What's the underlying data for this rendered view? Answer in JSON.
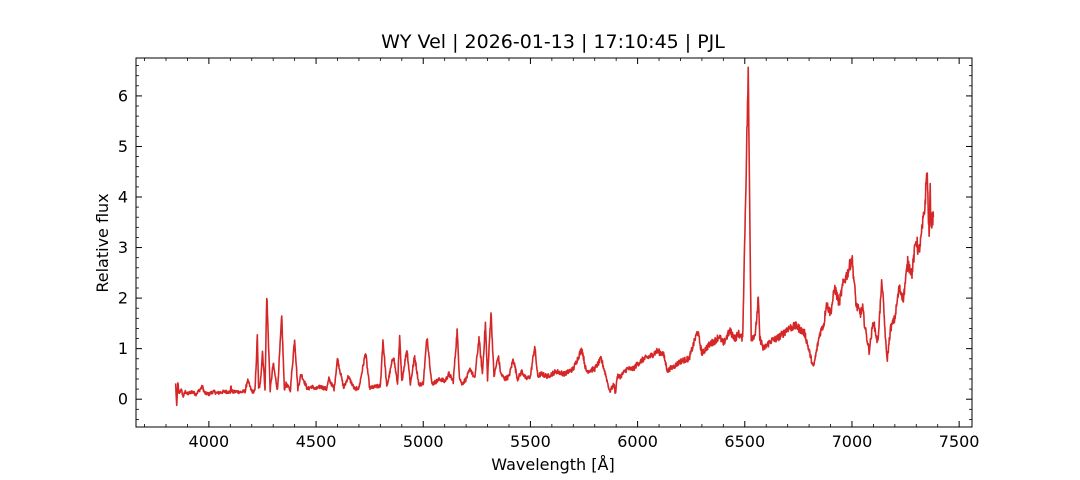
{
  "chart_data": {
    "type": "line",
    "title": "WY Vel | 2026-01-13 | 17:10:45 | PJL",
    "xlabel": "Wavelength [Å]",
    "ylabel": "Relative flux",
    "xlim": [
      3660,
      7560
    ],
    "ylim": [
      -0.55,
      6.75
    ],
    "xticks": [
      4000,
      4500,
      5000,
      5500,
      6000,
      6500,
      7000,
      7500
    ],
    "yticks": [
      0,
      1,
      2,
      3,
      4,
      5,
      6
    ],
    "grid": false,
    "legend": "none",
    "series_color": "#d62728",
    "series": [
      {
        "x": [
          3845,
          3850,
          3855,
          3860,
          3870,
          3880,
          3890,
          3900,
          3920,
          3940,
          3960,
          3970,
          3980,
          4000,
          4020,
          4040,
          4060,
          4080,
          4100,
          4102,
          4110,
          4130,
          4150,
          4170,
          4180,
          4200,
          4215,
          4226,
          4232,
          4240,
          4250,
          4262,
          4270,
          4286,
          4300,
          4320,
          4340,
          4352,
          4360,
          4380,
          4400,
          4415,
          4430,
          4460,
          4480,
          4500,
          4520,
          4549,
          4560,
          4584,
          4600,
          4629,
          4650,
          4680,
          4700,
          4731,
          4750,
          4780,
          4800,
          4812,
          4830,
          4861,
          4880,
          4890,
          4900,
          4924,
          4940,
          4960,
          4980,
          5000,
          5018,
          5040,
          5060,
          5080,
          5100,
          5120,
          5140,
          5158,
          5169,
          5180,
          5200,
          5220,
          5240,
          5260,
          5276,
          5290,
          5300,
          5316,
          5330,
          5350,
          5362,
          5380,
          5400,
          5420,
          5440,
          5460,
          5480,
          5500,
          5520,
          5534,
          5550,
          5580,
          5600,
          5620,
          5660,
          5700,
          5740,
          5760,
          5800,
          5830,
          5850,
          5870,
          5890,
          5896,
          5905,
          5920,
          5950,
          5980,
          6000,
          6030,
          6060,
          6090,
          6120,
          6140,
          6150,
          6170,
          6200,
          6240,
          6280,
          6300,
          6318,
          6340,
          6360,
          6380,
          6400,
          6430,
          6456,
          6470,
          6490,
          6516,
          6530,
          6550,
          6563,
          6570,
          6580,
          6585,
          6600,
          6620,
          6650,
          6680,
          6700,
          6740,
          6780,
          6820,
          6850,
          6870,
          6880,
          6900,
          6920,
          6940,
          6960,
          6980,
          7000,
          7020,
          7040,
          7050,
          7060,
          7080,
          7100,
          7120,
          7140,
          7160,
          7165,
          7180,
          7200,
          7220,
          7240,
          7260,
          7280,
          7300,
          7310,
          7320,
          7340,
          7350,
          7360,
          7365,
          7370,
          7380
        ],
        "y": [
          0.3,
          -0.15,
          0.35,
          0.1,
          0.2,
          0.05,
          0.15,
          0.1,
          0.15,
          0.1,
          0.2,
          0.25,
          0.12,
          0.1,
          0.15,
          0.12,
          0.14,
          0.15,
          0.14,
          0.25,
          0.14,
          0.15,
          0.14,
          0.16,
          0.38,
          0.15,
          0.16,
          1.23,
          0.2,
          0.3,
          0.95,
          0.2,
          2.07,
          0.18,
          0.7,
          0.18,
          1.62,
          0.2,
          0.3,
          0.18,
          1.2,
          0.2,
          0.5,
          0.2,
          0.25,
          0.2,
          0.25,
          0.2,
          0.4,
          0.2,
          0.8,
          0.22,
          0.45,
          0.2,
          0.22,
          0.92,
          0.22,
          0.25,
          0.26,
          1.17,
          0.24,
          0.86,
          0.3,
          1.2,
          0.35,
          1.0,
          0.3,
          0.85,
          0.28,
          0.32,
          1.25,
          0.3,
          0.35,
          0.4,
          0.35,
          0.5,
          0.35,
          1.35,
          0.45,
          0.3,
          0.4,
          0.6,
          0.4,
          1.2,
          0.5,
          1.5,
          0.4,
          1.73,
          0.45,
          0.85,
          0.5,
          0.4,
          0.45,
          0.8,
          0.4,
          0.55,
          0.4,
          0.45,
          1.05,
          0.45,
          0.5,
          0.45,
          0.5,
          0.55,
          0.5,
          0.6,
          1.0,
          0.55,
          0.6,
          0.8,
          0.5,
          0.15,
          0.3,
          0.1,
          0.45,
          0.45,
          0.6,
          0.6,
          0.7,
          0.8,
          0.85,
          0.95,
          0.9,
          0.55,
          0.6,
          0.65,
          0.75,
          0.8,
          1.35,
          0.9,
          1.0,
          1.1,
          1.15,
          1.25,
          1.1,
          1.35,
          1.2,
          1.3,
          1.2,
          6.45,
          1.2,
          1.3,
          2.0,
          1.2,
          1.1,
          1.0,
          1.05,
          1.15,
          1.2,
          1.3,
          1.4,
          1.45,
          1.3,
          0.62,
          1.3,
          1.5,
          1.9,
          1.7,
          2.2,
          1.9,
          2.3,
          2.5,
          2.8,
          1.85,
          1.7,
          1.8,
          1.45,
          0.95,
          1.55,
          1.1,
          2.35,
          0.95,
          0.8,
          1.4,
          1.6,
          2.2,
          2.0,
          2.7,
          2.5,
          3.2,
          2.9,
          3.1,
          3.8,
          4.56,
          3.2,
          4.1,
          3.5,
          3.6
        ]
      }
    ]
  }
}
